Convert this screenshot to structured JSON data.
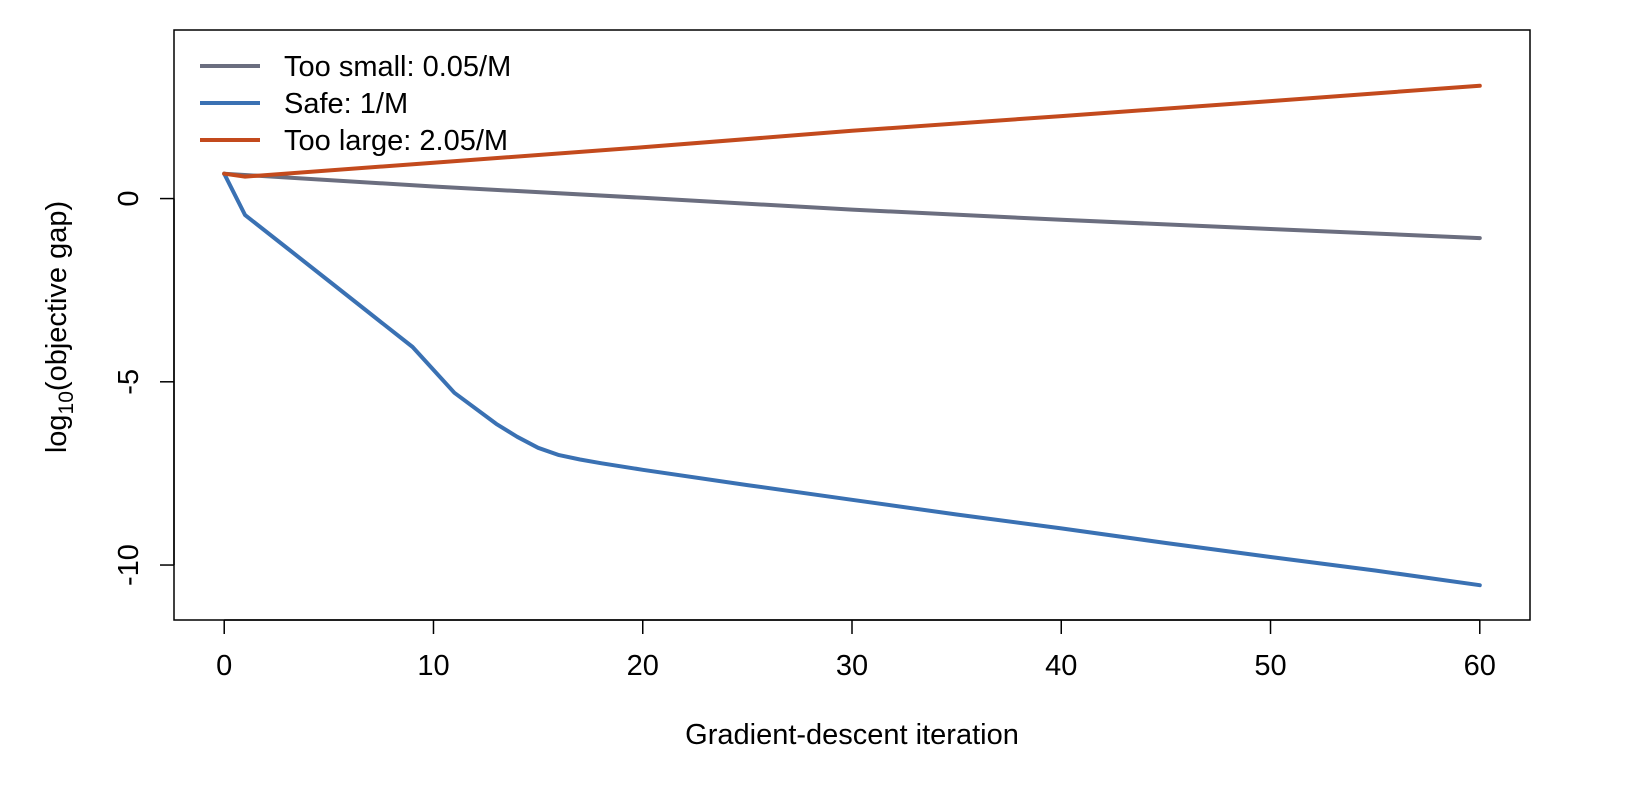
{
  "chart_data": {
    "type": "line",
    "xlabel": "Gradient-descent iteration",
    "ylabel": {
      "prefix": "log",
      "subscript": "10",
      "suffix": "(objective gap)"
    },
    "xlim": [
      -2.4,
      62.4
    ],
    "ylim": [
      -11.5,
      4.6
    ],
    "x_ticks": [
      0,
      10,
      20,
      30,
      40,
      50,
      60
    ],
    "x_tick_labels": [
      "0",
      "10",
      "20",
      "30",
      "40",
      "50",
      "60"
    ],
    "y_ticks": [
      0,
      -5,
      -10
    ],
    "y_tick_labels": [
      "0",
      "-5",
      "-10"
    ],
    "legend_position": "top-left",
    "series": [
      {
        "name": "Too small: 0.05/M",
        "color": "#6b6e7f",
        "x": [
          0,
          10,
          20,
          30,
          40,
          50,
          60
        ],
        "y": [
          0.68,
          0.33,
          0.02,
          -0.3,
          -0.58,
          -0.83,
          -1.08
        ]
      },
      {
        "name": "Safe: 1/M",
        "color": "#3a71b3",
        "x": [
          0,
          1,
          3,
          5,
          7,
          9,
          11,
          13,
          14,
          15,
          16,
          17,
          18,
          20,
          25,
          30,
          35,
          40,
          45,
          50,
          55,
          60
        ],
        "y": [
          0.68,
          -0.45,
          -1.35,
          -2.25,
          -3.15,
          -4.05,
          -5.3,
          -6.15,
          -6.5,
          -6.8,
          -7.0,
          -7.12,
          -7.22,
          -7.4,
          -7.82,
          -8.22,
          -8.62,
          -9.0,
          -9.4,
          -9.78,
          -10.15,
          -10.55
        ]
      },
      {
        "name": "Too large: 2.05/M",
        "color": "#c34a1d",
        "x": [
          0,
          1,
          10,
          20,
          30,
          40,
          50,
          60
        ],
        "y": [
          0.68,
          0.6,
          0.98,
          1.4,
          1.85,
          2.25,
          2.66,
          3.08
        ]
      }
    ]
  }
}
